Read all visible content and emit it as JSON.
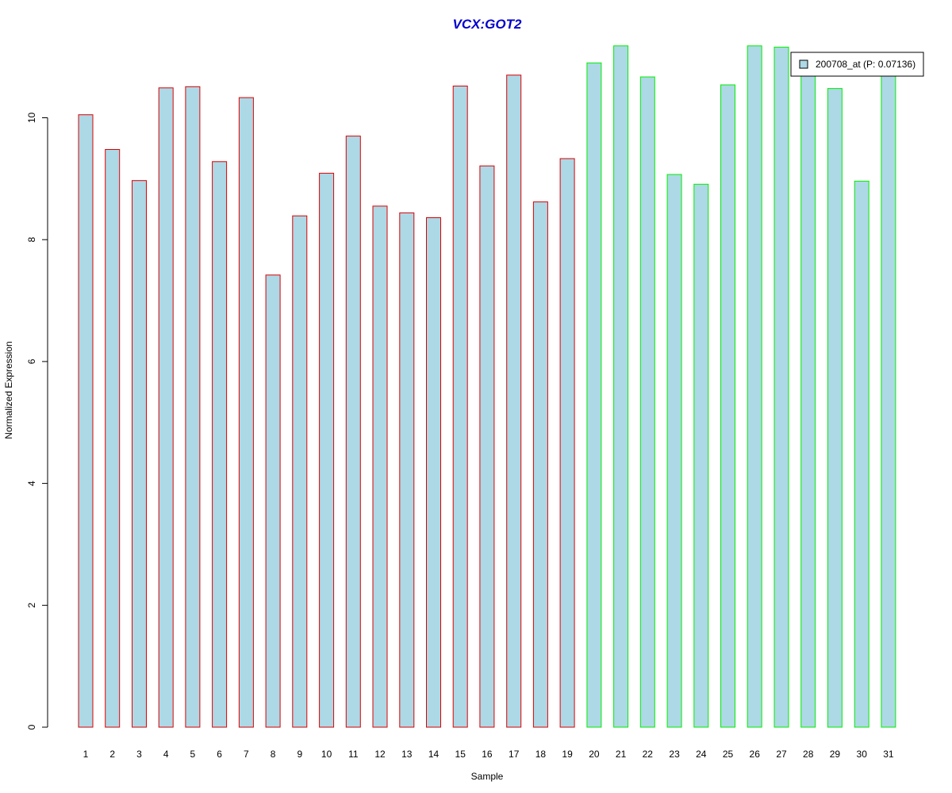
{
  "chart_data": {
    "type": "bar",
    "title": "VCX:GOT2",
    "xlabel": "Sample",
    "ylabel": "Normalized Expression",
    "ylim": [
      0,
      11.2
    ],
    "yticks": [
      0,
      2,
      4,
      6,
      8,
      10
    ],
    "grid": false,
    "legend_position": "top-right",
    "categories": [
      "1",
      "2",
      "3",
      "4",
      "5",
      "6",
      "7",
      "8",
      "9",
      "10",
      "11",
      "12",
      "13",
      "14",
      "15",
      "16",
      "17",
      "18",
      "19",
      "20",
      "21",
      "22",
      "23",
      "24",
      "25",
      "26",
      "27",
      "28",
      "29",
      "30",
      "31"
    ],
    "series": [
      {
        "name": "200708_at (P: 0.07136)",
        "values": [
          10.05,
          9.48,
          8.97,
          10.49,
          10.51,
          9.28,
          10.33,
          7.42,
          8.39,
          9.09,
          9.7,
          8.55,
          8.44,
          8.36,
          10.52,
          9.21,
          10.7,
          8.62,
          9.33,
          10.9,
          11.18,
          10.67,
          9.07,
          8.91,
          10.54,
          11.18,
          11.16,
          10.86,
          10.48,
          8.96,
          10.86
        ]
      }
    ],
    "group_colors": [
      "#DD0000",
      "#DD0000",
      "#DD0000",
      "#DD0000",
      "#DD0000",
      "#DD0000",
      "#DD0000",
      "#DD0000",
      "#DD0000",
      "#DD0000",
      "#DD0000",
      "#DD0000",
      "#DD0000",
      "#DD0000",
      "#DD0000",
      "#DD0000",
      "#DD0000",
      "#DD0000",
      "#DD0000",
      "#00EE00",
      "#00EE00",
      "#00EE00",
      "#00EE00",
      "#00EE00",
      "#00EE00",
      "#00EE00",
      "#00EE00",
      "#00EE00",
      "#00EE00",
      "#00EE00",
      "#00EE00"
    ],
    "bar_fill": "#ADD8E6",
    "title_color": "#0000CD"
  }
}
